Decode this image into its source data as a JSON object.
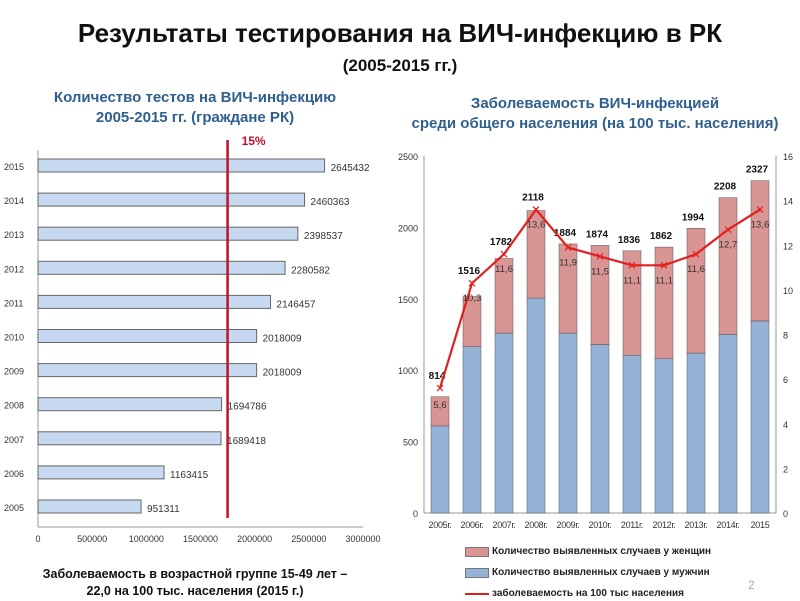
{
  "title": "Результаты тестирования на ВИЧ-инфекцию в РК",
  "subtitle": "(2005-2015 гг.)",
  "page_number": "2",
  "note": [
    "Заболеваемость в возрастной группе 15-49 лет –",
    "22,0 на 100 тыс. населения (2015 г.)"
  ],
  "chart_data": [
    {
      "type": "bar",
      "orientation": "horizontal",
      "title": [
        "Количество тестов на ВИЧ-инфекцию",
        "2005-2015 гг. (граждане РК)"
      ],
      "categories": [
        "2015",
        "2014",
        "2013",
        "2012",
        "2011",
        "2010",
        "2009",
        "2008",
        "2007",
        "2006",
        "2005"
      ],
      "values": [
        2645432,
        2460363,
        2398537,
        2280582,
        2146457,
        2018009,
        2018009,
        1694786,
        1689418,
        1163415,
        951311
      ],
      "xlim": [
        0,
        3000000
      ],
      "xticks": [
        0,
        500000,
        1000000,
        1500000,
        2000000,
        2500000,
        3000000
      ],
      "reference_line": {
        "value": 1750000,
        "label": "15%",
        "color": "#c0112a"
      },
      "bar_color": "#c6d9f1"
    },
    {
      "type": "bar",
      "stacked": true,
      "title": [
        "Заболеваемость ВИЧ-инфекцией",
        "среди общего населения (на 100 тыс. населения)"
      ],
      "categories": [
        "2005г.",
        "2006г.",
        "2007г.",
        "2008г.",
        "2009г.",
        "2010г.",
        "2011г.",
        "2012г.",
        "2013г.",
        "2014г.",
        "2015"
      ],
      "totals": [
        814,
        1516,
        1782,
        2118,
        1884,
        1874,
        1836,
        1862,
        1994,
        2208,
        2327
      ],
      "series": [
        {
          "name": "Количество выявленных случаев у мужчин",
          "color": "#95b3d7",
          "values": [
            610,
            1165,
            1260,
            1505,
            1260,
            1180,
            1105,
            1080,
            1120,
            1250,
            1345
          ]
        },
        {
          "name": "Количество выявленных случаев у женщин",
          "color": "#d99594",
          "values": [
            204,
            351,
            522,
            613,
            624,
            694,
            731,
            782,
            874,
            958,
            982
          ]
        },
        {
          "name": "заболеваемость на 100 тыс населения",
          "type": "line",
          "axis": "right",
          "color": "#e02020",
          "values": [
            5.6,
            10.3,
            11.6,
            13.6,
            11.9,
            11.5,
            11.1,
            11.1,
            11.6,
            12.7,
            13.6
          ],
          "labels": [
            "5,6",
            "10,3",
            "11,6",
            "13,6",
            "11,9",
            "11,5",
            "11,1",
            "11,1",
            "11,6",
            "12,7",
            "13,6"
          ]
        }
      ],
      "ylim": [
        0,
        2500
      ],
      "yticks": [
        0,
        500,
        1000,
        1500,
        2000,
        2500
      ],
      "y2lim": [
        0,
        16
      ],
      "y2ticks": [
        0,
        2,
        4,
        6,
        8,
        10,
        12,
        14,
        16
      ],
      "legend": "bottom"
    }
  ]
}
